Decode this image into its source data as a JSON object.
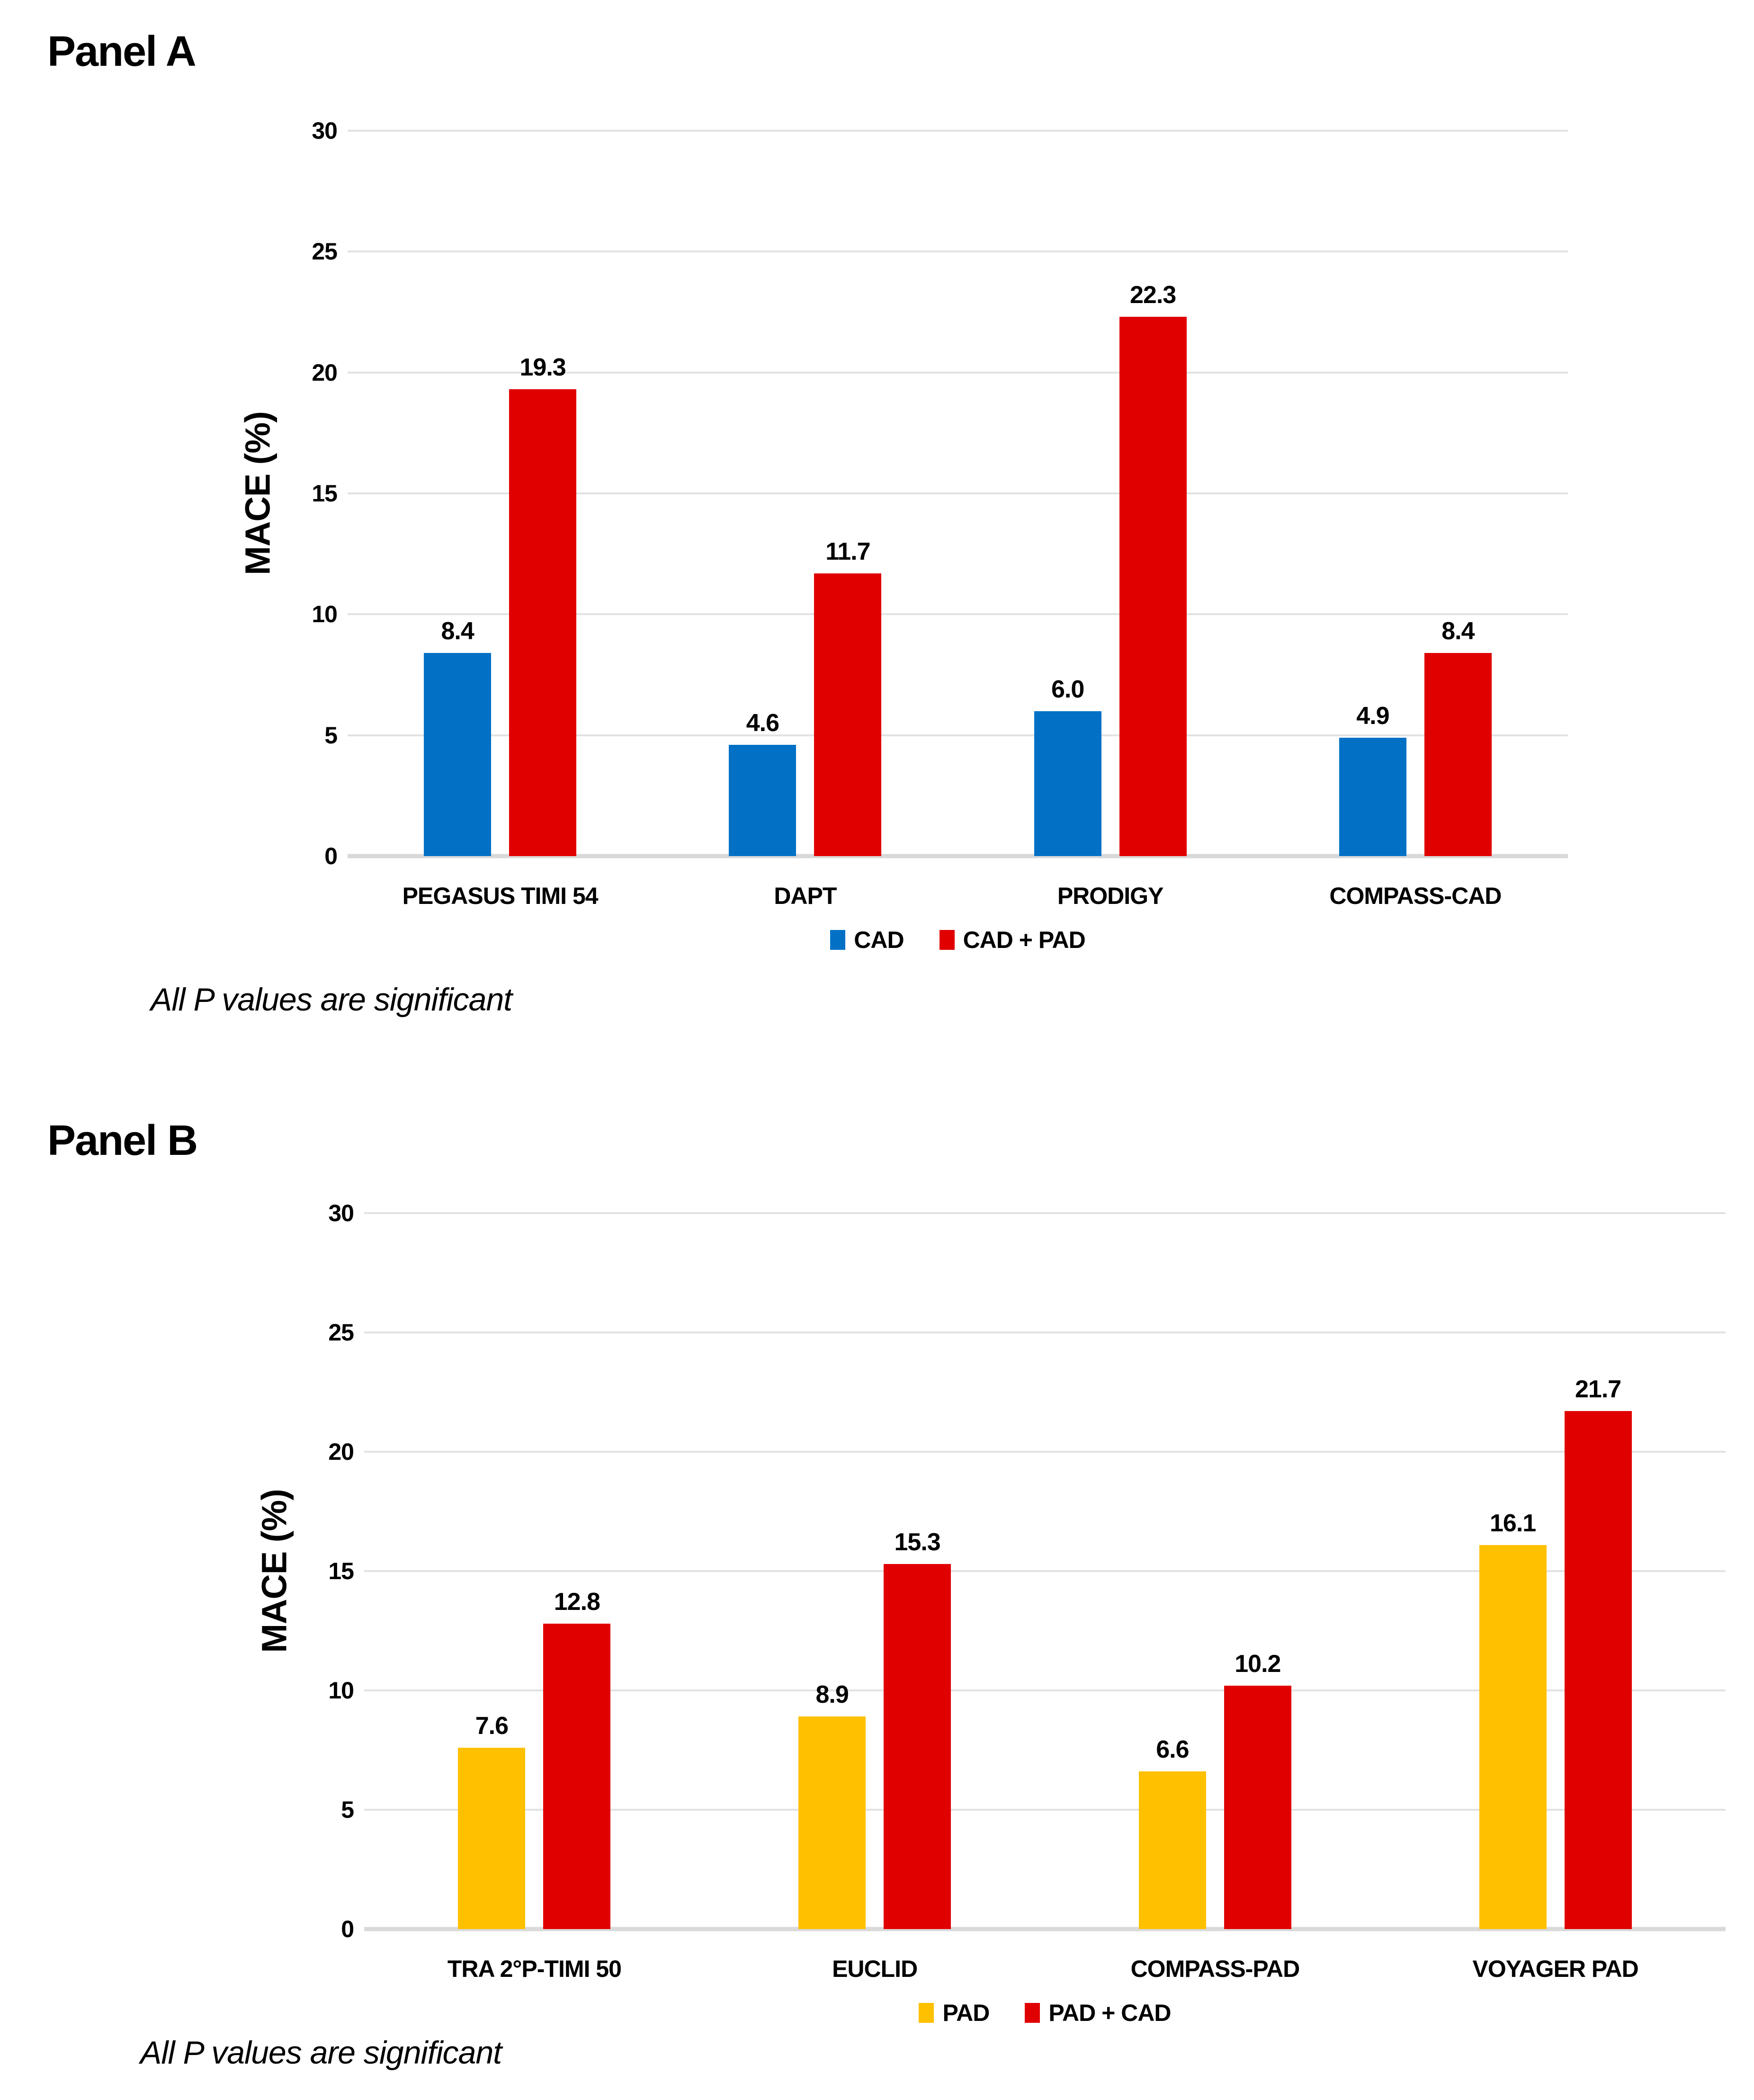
{
  "chart_data": [
    {
      "type": "bar",
      "title": "Panel A",
      "ylabel": "MACE (%)",
      "footnote": "All P values are significant",
      "categories": [
        "PEGASUS TIMI 54",
        "DAPT",
        "PRODIGY",
        "COMPASS-CAD"
      ],
      "series": [
        {
          "name": "CAD",
          "color": "#0271c5",
          "values": [
            8.4,
            4.6,
            6.0,
            4.9
          ],
          "value_labels": [
            "8.4",
            "4.6",
            "6.0",
            "4.9"
          ]
        },
        {
          "name": "CAD + PAD",
          "color": "#e00000",
          "values": [
            19.3,
            11.7,
            22.3,
            8.4
          ],
          "value_labels": [
            "19.3",
            "11.7",
            "22.3",
            "8.4"
          ]
        }
      ],
      "ylim": [
        0,
        30
      ],
      "yticks": [
        0,
        5,
        10,
        15,
        20,
        25,
        30
      ],
      "grid": true,
      "gridline_color": "#e2e2e2",
      "legend_position": "bottom"
    },
    {
      "type": "bar",
      "title": "Panel B",
      "ylabel": "MACE (%)",
      "footnote": "All P values are significant",
      "categories": [
        "TRA 2°P-TIMI 50",
        "EUCLID",
        "COMPASS-PAD",
        "VOYAGER PAD"
      ],
      "series": [
        {
          "name": "PAD",
          "color": "#ffc000",
          "values": [
            7.6,
            8.9,
            6.6,
            16.1
          ],
          "value_labels": [
            "7.6",
            "8.9",
            "6.6",
            "16.1"
          ]
        },
        {
          "name": "PAD + CAD",
          "color": "#e00000",
          "values": [
            12.8,
            15.3,
            10.2,
            21.7
          ],
          "value_labels": [
            "12.8",
            "15.3",
            "10.2",
            "21.7"
          ]
        }
      ],
      "ylim": [
        0,
        30
      ],
      "yticks": [
        0,
        5,
        10,
        15,
        20,
        25,
        30
      ],
      "grid": true,
      "gridline_color": "#e2e2e2",
      "legend_position": "bottom"
    }
  ]
}
